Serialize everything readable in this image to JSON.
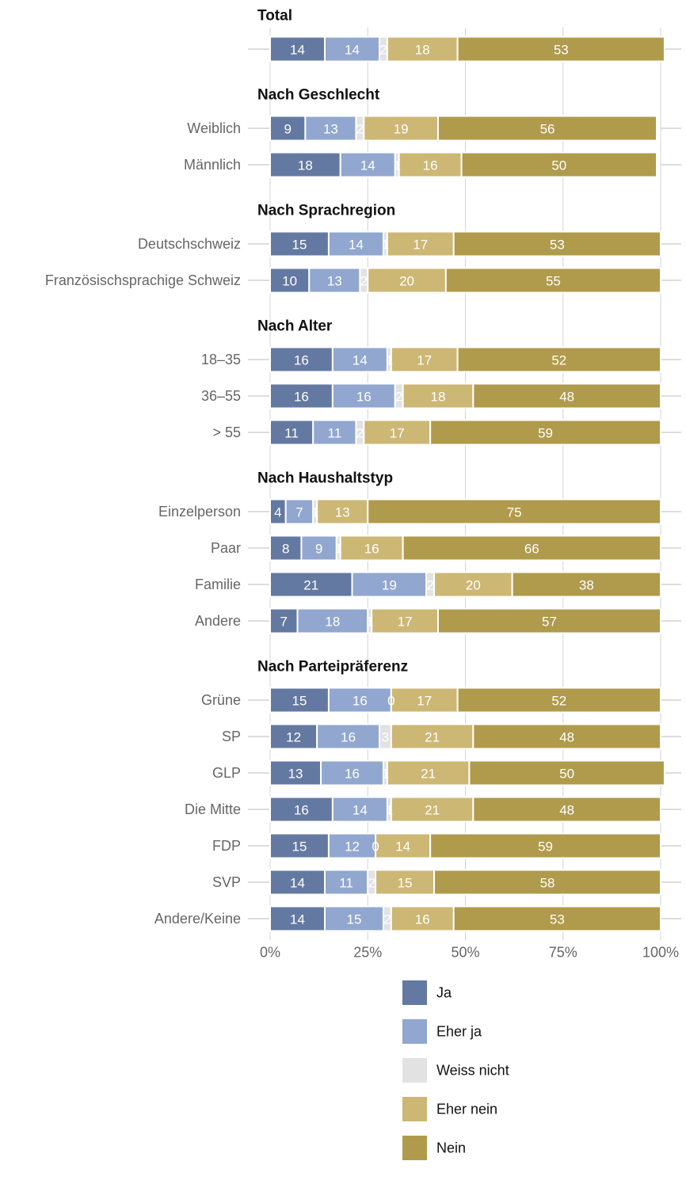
{
  "chart_data": {
    "type": "bar",
    "orientation": "horizontal",
    "stacked": true,
    "normalized": true,
    "xlim": [
      0,
      100
    ],
    "x_ticks": [
      "0%",
      "25%",
      "50%",
      "75%",
      "100%"
    ],
    "grid": true,
    "legend_position": "bottom",
    "series": [
      {
        "name": "Ja",
        "color": "#6479a2"
      },
      {
        "name": "Eher ja",
        "color": "#92a7cf"
      },
      {
        "name": "Weiss nicht",
        "color": "#e2e2e2"
      },
      {
        "name": "Eher nein",
        "color": "#cdb774"
      },
      {
        "name": "Nein",
        "color": "#b09b4c"
      }
    ],
    "groups": [
      {
        "title": "Total",
        "rows": [
          {
            "label": "",
            "values": [
              14,
              14,
              2,
              18,
              53
            ]
          }
        ]
      },
      {
        "title": "Nach Geschlecht",
        "rows": [
          {
            "label": "Weiblich",
            "values": [
              9,
              13,
              2,
              19,
              56
            ]
          },
          {
            "label": "Männlich",
            "values": [
              18,
              14,
              1,
              16,
              50
            ]
          }
        ]
      },
      {
        "title": "Nach Sprachregion",
        "rows": [
          {
            "label": "Deutschschweiz",
            "values": [
              15,
              14,
              1,
              17,
              53
            ]
          },
          {
            "label": "Französischsprachige Schweiz",
            "values": [
              10,
              13,
              2,
              20,
              55
            ]
          }
        ]
      },
      {
        "title": "Nach Alter",
        "rows": [
          {
            "label": "18–35",
            "values": [
              16,
              14,
              1,
              17,
              52
            ]
          },
          {
            "label": "36–55",
            "values": [
              16,
              16,
              2,
              18,
              48
            ]
          },
          {
            "label": "> 55",
            "values": [
              11,
              11,
              2,
              17,
              59
            ]
          }
        ]
      },
      {
        "title": "Nach Haushaltstyp",
        "rows": [
          {
            "label": "Einzelperson",
            "values": [
              4,
              7,
              1,
              13,
              75
            ]
          },
          {
            "label": "Paar",
            "values": [
              8,
              9,
              1,
              16,
              66
            ]
          },
          {
            "label": "Familie",
            "values": [
              21,
              19,
              2,
              20,
              38
            ]
          },
          {
            "label": "Andere",
            "values": [
              7,
              18,
              1,
              17,
              57
            ]
          }
        ]
      },
      {
        "title": "Nach Parteipräferenz",
        "rows": [
          {
            "label": "Grüne",
            "values": [
              15,
              16,
              0,
              17,
              52
            ]
          },
          {
            "label": "SP",
            "values": [
              12,
              16,
              3,
              21,
              48
            ]
          },
          {
            "label": "GLP",
            "values": [
              13,
              16,
              1,
              21,
              50
            ]
          },
          {
            "label": "Die Mitte",
            "values": [
              16,
              14,
              1,
              21,
              48
            ]
          },
          {
            "label": "FDP",
            "values": [
              15,
              12,
              0,
              14,
              59
            ]
          },
          {
            "label": "SVP",
            "values": [
              14,
              11,
              2,
              15,
              58
            ]
          },
          {
            "label": "Andere/Keine",
            "values": [
              14,
              15,
              2,
              16,
              53
            ]
          }
        ]
      }
    ]
  }
}
